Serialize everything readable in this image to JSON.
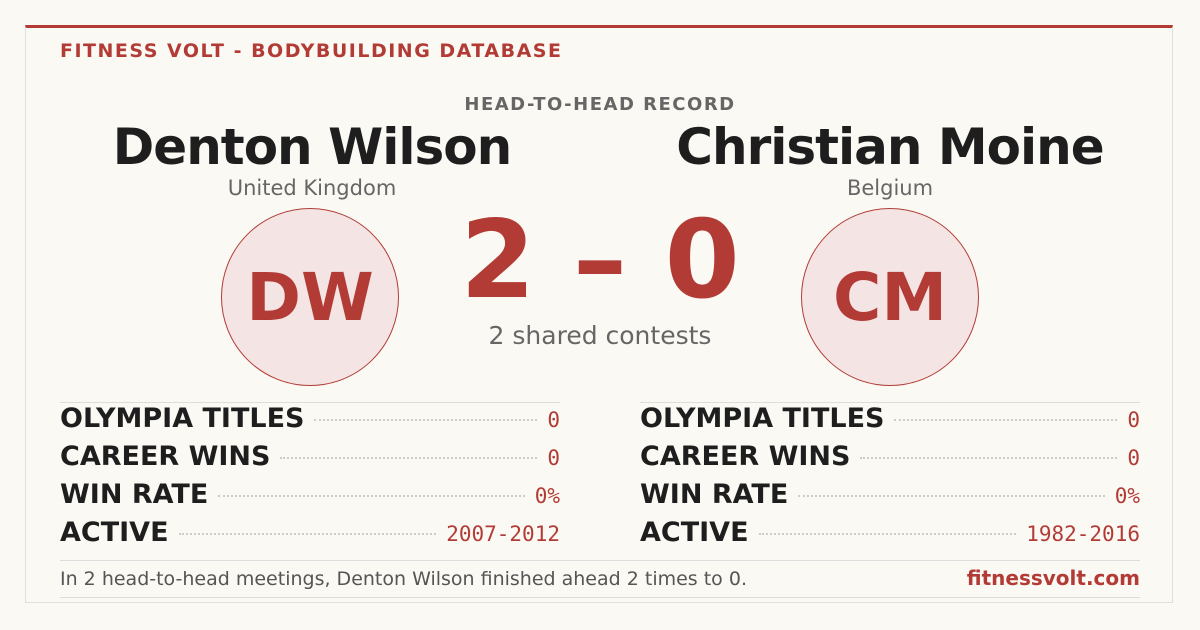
{
  "header": {
    "title": "FITNESS VOLT - BODYBUILDING DATABASE",
    "subtitle": "HEAD-TO-HEAD RECORD"
  },
  "left": {
    "name": "Denton Wilson",
    "country": "United Kingdom",
    "initials": "DW",
    "stats": [
      {
        "label": "OLYMPIA TITLES",
        "value": "0"
      },
      {
        "label": "CAREER WINS",
        "value": "0"
      },
      {
        "label": "WIN RATE",
        "value": "0%"
      },
      {
        "label": "ACTIVE",
        "value": "2007-2012"
      }
    ]
  },
  "right": {
    "name": "Christian Moine",
    "country": "Belgium",
    "initials": "CM",
    "stats": [
      {
        "label": "OLYMPIA TITLES",
        "value": "0"
      },
      {
        "label": "CAREER WINS",
        "value": "0"
      },
      {
        "label": "WIN RATE",
        "value": "0%"
      },
      {
        "label": "ACTIVE",
        "value": "1982-2016"
      }
    ]
  },
  "score": {
    "text": "2 – 0",
    "caption": "2 shared contests"
  },
  "footer": {
    "summary": "In 2 head-to-head meetings, Denton Wilson finished ahead 2 times to 0.",
    "site": "fitnessvolt.com"
  }
}
